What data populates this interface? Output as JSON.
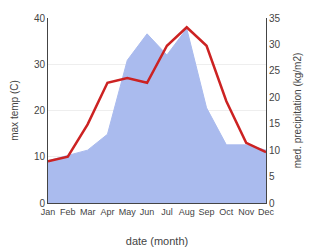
{
  "chart_data": {
    "type": "line",
    "categories": [
      "Jan",
      "Feb",
      "Mar",
      "Apr",
      "May",
      "Jun",
      "Jul",
      "Aug",
      "Sep",
      "Oct",
      "Nov",
      "Dec"
    ],
    "series": [
      {
        "type": "area",
        "color": "#aabbee",
        "axis": "y2",
        "values": [
          8,
          9,
          10,
          13,
          27,
          32,
          28,
          33,
          18,
          11,
          11,
          10
        ]
      },
      {
        "type": "line",
        "color": "#cc2222",
        "values": [
          9,
          10,
          17,
          26,
          27,
          26,
          34,
          38,
          34,
          22,
          13,
          11
        ]
      }
    ],
    "xlabel": "date (month)",
    "ylabel": "max temp (C)",
    "y2label": "med. precipitation (kg/m2)",
    "ylim": [
      0,
      40
    ],
    "yticks": [
      0,
      10,
      20,
      30,
      40
    ],
    "y2lim": [
      0,
      35
    ],
    "y2ticks": [
      0,
      5,
      10,
      15,
      20,
      25,
      30,
      35
    ],
    "grid": true,
    "legend": false
  }
}
